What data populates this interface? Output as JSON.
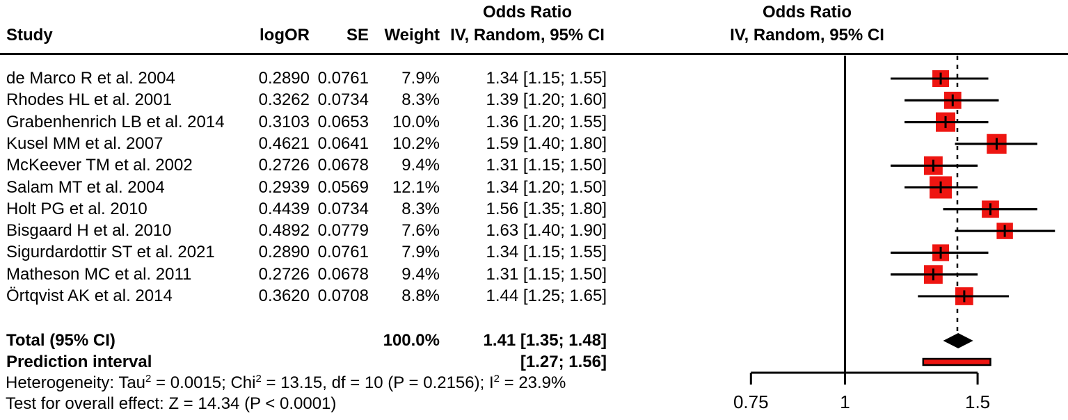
{
  "table_header": {
    "col_study": "Study",
    "col_logor": "logOR",
    "col_se": "SE",
    "col_weight": "Weight",
    "effect_col_title1": "Odds Ratio",
    "effect_col_title2": "IV, Random, 95% CI",
    "plot_title1": "Odds Ratio",
    "plot_title2": "IV, Random, 95% CI"
  },
  "chart_data": {
    "type": "forest",
    "effect_measure": "Odds Ratio",
    "model_label": "IV, Random, 95% CI",
    "x_scale": "log",
    "x_ticks": [
      0.75,
      1,
      1.5
    ],
    "x_tick_labels": [
      "0.75",
      "1",
      "1.5"
    ],
    "null_value": 1,
    "studies": [
      {
        "study": "de Marco R et al. 2004",
        "logOR": "0.2890",
        "SE": "0.0761",
        "weight": "7.9%",
        "weight_pct": 7.9,
        "or": 1.34,
        "ci_low": 1.15,
        "ci_high": 1.55,
        "ci_text": "1.34 [1.15; 1.55]"
      },
      {
        "study": "Rhodes HL et al. 2001",
        "logOR": "0.3262",
        "SE": "0.0734",
        "weight": "8.3%",
        "weight_pct": 8.3,
        "or": 1.39,
        "ci_low": 1.2,
        "ci_high": 1.6,
        "ci_text": "1.39 [1.20; 1.60]"
      },
      {
        "study": "Grabenhenrich LB et al. 2014",
        "logOR": "0.3103",
        "SE": "0.0653",
        "weight": "10.0%",
        "weight_pct": 10.0,
        "or": 1.36,
        "ci_low": 1.2,
        "ci_high": 1.55,
        "ci_text": "1.36 [1.20; 1.55]"
      },
      {
        "study": "Kusel MM et al. 2007",
        "logOR": "0.4621",
        "SE": "0.0641",
        "weight": "10.2%",
        "weight_pct": 10.2,
        "or": 1.59,
        "ci_low": 1.4,
        "ci_high": 1.8,
        "ci_text": "1.59 [1.40; 1.80]"
      },
      {
        "study": "McKeever TM et al. 2002",
        "logOR": "0.2726",
        "SE": "0.0678",
        "weight": "9.4%",
        "weight_pct": 9.4,
        "or": 1.31,
        "ci_low": 1.15,
        "ci_high": 1.5,
        "ci_text": "1.31 [1.15; 1.50]"
      },
      {
        "study": "Salam MT et al. 2004",
        "logOR": "0.2939",
        "SE": "0.0569",
        "weight": "12.1%",
        "weight_pct": 12.1,
        "or": 1.34,
        "ci_low": 1.2,
        "ci_high": 1.5,
        "ci_text": "1.34 [1.20; 1.50]"
      },
      {
        "study": "Holt PG et al. 2010",
        "logOR": "0.4439",
        "SE": "0.0734",
        "weight": "8.3%",
        "weight_pct": 8.3,
        "or": 1.56,
        "ci_low": 1.35,
        "ci_high": 1.8,
        "ci_text": "1.56 [1.35; 1.80]"
      },
      {
        "study": "Bisgaard H et al. 2010",
        "logOR": "0.4892",
        "SE": "0.0779",
        "weight": "7.6%",
        "weight_pct": 7.6,
        "or": 1.63,
        "ci_low": 1.4,
        "ci_high": 1.9,
        "ci_text": "1.63 [1.40; 1.90]"
      },
      {
        "study": "Sigurdardottir ST et al. 2021",
        "logOR": "0.2890",
        "SE": "0.0761",
        "weight": "7.9%",
        "weight_pct": 7.9,
        "or": 1.34,
        "ci_low": 1.15,
        "ci_high": 1.55,
        "ci_text": "1.34 [1.15; 1.55]"
      },
      {
        "study": "Matheson MC et al. 2011",
        "logOR": "0.2726",
        "SE": "0.0678",
        "weight": "9.4%",
        "weight_pct": 9.4,
        "or": 1.31,
        "ci_low": 1.15,
        "ci_high": 1.5,
        "ci_text": "1.31 [1.15; 1.50]"
      },
      {
        "study": "Örtqvist AK et al. 2014",
        "logOR": "0.3620",
        "SE": "0.0708",
        "weight": "8.8%",
        "weight_pct": 8.8,
        "or": 1.44,
        "ci_low": 1.25,
        "ci_high": 1.65,
        "ci_text": "1.44 [1.25; 1.65]"
      }
    ],
    "total": {
      "label": "Total (95% CI)",
      "weight": "100.0%",
      "or": 1.41,
      "ci_low": 1.35,
      "ci_high": 1.48,
      "ci_text": "1.41 [1.35; 1.48]"
    },
    "prediction": {
      "label": "Prediction interval",
      "ci_low": 1.27,
      "ci_high": 1.56,
      "ci_text": "[1.27; 1.56]"
    }
  },
  "footer": {
    "het_parts": [
      "Heterogeneity: Tau",
      "2",
      " = 0.0015; Chi",
      "2",
      " = 13.15, df = 10 (P = 0.2156); I",
      "2",
      " = 23.9%"
    ],
    "overall_effect": "Test for overall effect: Z = 14.34 (P < 0.0001)"
  },
  "colors": {
    "square": "#ee1511",
    "prediction_bar": "#ee1511",
    "diamond": "#000000",
    "line": "#000000",
    "text": "#000000"
  }
}
